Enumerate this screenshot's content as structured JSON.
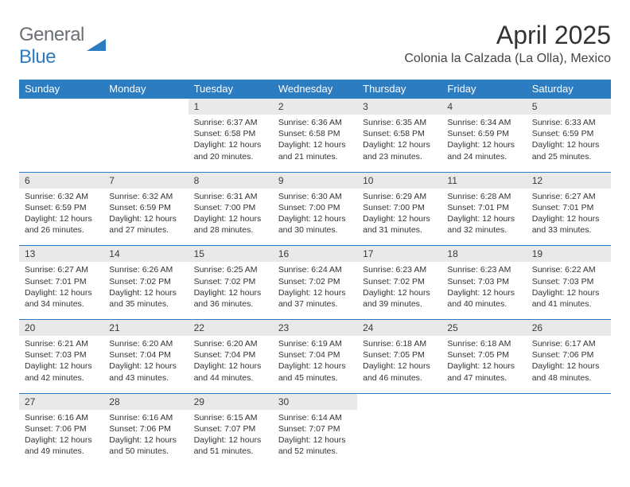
{
  "brand": {
    "part1": "General",
    "part2": "Blue"
  },
  "title": "April 2025",
  "location": "Colonia la Calzada (La Olla), Mexico",
  "colors": {
    "accent": "#2b7cc0",
    "header_text": "#ffffff",
    "daynum_bg": "#e9e9e9",
    "body_bg": "#ffffff",
    "text": "#333333"
  },
  "weekdays": [
    "Sunday",
    "Monday",
    "Tuesday",
    "Wednesday",
    "Thursday",
    "Friday",
    "Saturday"
  ],
  "weeks": [
    [
      null,
      null,
      {
        "n": "1",
        "sr": "6:37 AM",
        "ss": "6:58 PM",
        "dl": "12 hours and 20 minutes."
      },
      {
        "n": "2",
        "sr": "6:36 AM",
        "ss": "6:58 PM",
        "dl": "12 hours and 21 minutes."
      },
      {
        "n": "3",
        "sr": "6:35 AM",
        "ss": "6:58 PM",
        "dl": "12 hours and 23 minutes."
      },
      {
        "n": "4",
        "sr": "6:34 AM",
        "ss": "6:59 PM",
        "dl": "12 hours and 24 minutes."
      },
      {
        "n": "5",
        "sr": "6:33 AM",
        "ss": "6:59 PM",
        "dl": "12 hours and 25 minutes."
      }
    ],
    [
      {
        "n": "6",
        "sr": "6:32 AM",
        "ss": "6:59 PM",
        "dl": "12 hours and 26 minutes."
      },
      {
        "n": "7",
        "sr": "6:32 AM",
        "ss": "6:59 PM",
        "dl": "12 hours and 27 minutes."
      },
      {
        "n": "8",
        "sr": "6:31 AM",
        "ss": "7:00 PM",
        "dl": "12 hours and 28 minutes."
      },
      {
        "n": "9",
        "sr": "6:30 AM",
        "ss": "7:00 PM",
        "dl": "12 hours and 30 minutes."
      },
      {
        "n": "10",
        "sr": "6:29 AM",
        "ss": "7:00 PM",
        "dl": "12 hours and 31 minutes."
      },
      {
        "n": "11",
        "sr": "6:28 AM",
        "ss": "7:01 PM",
        "dl": "12 hours and 32 minutes."
      },
      {
        "n": "12",
        "sr": "6:27 AM",
        "ss": "7:01 PM",
        "dl": "12 hours and 33 minutes."
      }
    ],
    [
      {
        "n": "13",
        "sr": "6:27 AM",
        "ss": "7:01 PM",
        "dl": "12 hours and 34 minutes."
      },
      {
        "n": "14",
        "sr": "6:26 AM",
        "ss": "7:02 PM",
        "dl": "12 hours and 35 minutes."
      },
      {
        "n": "15",
        "sr": "6:25 AM",
        "ss": "7:02 PM",
        "dl": "12 hours and 36 minutes."
      },
      {
        "n": "16",
        "sr": "6:24 AM",
        "ss": "7:02 PM",
        "dl": "12 hours and 37 minutes."
      },
      {
        "n": "17",
        "sr": "6:23 AM",
        "ss": "7:02 PM",
        "dl": "12 hours and 39 minutes."
      },
      {
        "n": "18",
        "sr": "6:23 AM",
        "ss": "7:03 PM",
        "dl": "12 hours and 40 minutes."
      },
      {
        "n": "19",
        "sr": "6:22 AM",
        "ss": "7:03 PM",
        "dl": "12 hours and 41 minutes."
      }
    ],
    [
      {
        "n": "20",
        "sr": "6:21 AM",
        "ss": "7:03 PM",
        "dl": "12 hours and 42 minutes."
      },
      {
        "n": "21",
        "sr": "6:20 AM",
        "ss": "7:04 PM",
        "dl": "12 hours and 43 minutes."
      },
      {
        "n": "22",
        "sr": "6:20 AM",
        "ss": "7:04 PM",
        "dl": "12 hours and 44 minutes."
      },
      {
        "n": "23",
        "sr": "6:19 AM",
        "ss": "7:04 PM",
        "dl": "12 hours and 45 minutes."
      },
      {
        "n": "24",
        "sr": "6:18 AM",
        "ss": "7:05 PM",
        "dl": "12 hours and 46 minutes."
      },
      {
        "n": "25",
        "sr": "6:18 AM",
        "ss": "7:05 PM",
        "dl": "12 hours and 47 minutes."
      },
      {
        "n": "26",
        "sr": "6:17 AM",
        "ss": "7:06 PM",
        "dl": "12 hours and 48 minutes."
      }
    ],
    [
      {
        "n": "27",
        "sr": "6:16 AM",
        "ss": "7:06 PM",
        "dl": "12 hours and 49 minutes."
      },
      {
        "n": "28",
        "sr": "6:16 AM",
        "ss": "7:06 PM",
        "dl": "12 hours and 50 minutes."
      },
      {
        "n": "29",
        "sr": "6:15 AM",
        "ss": "7:07 PM",
        "dl": "12 hours and 51 minutes."
      },
      {
        "n": "30",
        "sr": "6:14 AM",
        "ss": "7:07 PM",
        "dl": "12 hours and 52 minutes."
      },
      null,
      null,
      null
    ]
  ],
  "labels": {
    "sunrise": "Sunrise:",
    "sunset": "Sunset:",
    "daylight": "Daylight:"
  }
}
